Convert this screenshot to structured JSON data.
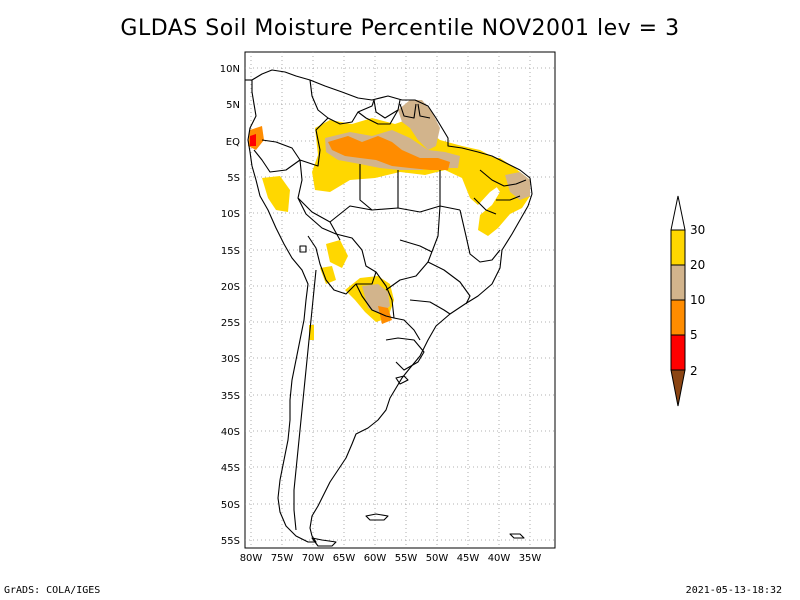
{
  "title": "GLDAS Soil Moisture Percentile NOV2001 lev = 3",
  "footer": {
    "left": "GrADS: COLA/IGES",
    "right": "2021-05-13-18:32"
  },
  "map": {
    "lon_range": [
      -80,
      -30
    ],
    "lat_range": [
      -56,
      12
    ],
    "lat_ticks": [
      "10N",
      "5N",
      "EQ",
      "5S",
      "10S",
      "15S",
      "20S",
      "25S",
      "30S",
      "35S",
      "40S",
      "45S",
      "50S",
      "55S"
    ],
    "lon_ticks": [
      "80W",
      "75W",
      "70W",
      "65W",
      "60W",
      "55W",
      "50W",
      "45W",
      "40W",
      "35W"
    ],
    "grid": true
  },
  "colorbar": {
    "labels": [
      "30",
      "20",
      "10",
      "5",
      "2"
    ],
    "colors": {
      "above_30": "#ffffff",
      "20_30": "#ffd700",
      "10_20": "#d2b48c",
      "5_10": "#ff8c00",
      "2_5": "#ff0000",
      "below_2": "#8b4513"
    }
  }
}
